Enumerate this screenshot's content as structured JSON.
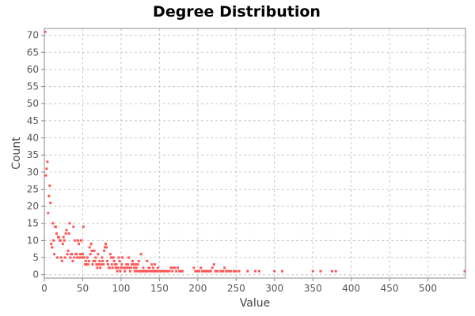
{
  "chart_data": {
    "type": "scatter",
    "title": "Degree Distribution",
    "xlabel": "Value",
    "ylabel": "Count",
    "xlim": [
      0,
      549
    ],
    "ylim": [
      -1,
      72
    ],
    "x_ticks": [
      0,
      50,
      100,
      150,
      200,
      250,
      300,
      350,
      400,
      450,
      500
    ],
    "y_ticks": [
      0,
      5,
      10,
      15,
      20,
      25,
      30,
      35,
      40,
      45,
      50,
      55,
      60,
      65,
      70
    ],
    "grid": true,
    "legend": "none",
    "colors": {
      "point": "#ff5555",
      "grid": "#c8c8c8",
      "frame": "#888888"
    },
    "series": [
      {
        "points": [
          [
            1,
            71
          ],
          [
            2,
            29
          ],
          [
            3,
            31
          ],
          [
            4,
            33
          ],
          [
            5,
            18
          ],
          [
            6,
            23
          ],
          [
            7,
            26
          ],
          [
            8,
            21
          ],
          [
            9,
            9
          ],
          [
            10,
            8
          ],
          [
            11,
            15
          ],
          [
            12,
            10
          ],
          [
            13,
            6
          ],
          [
            14,
            14
          ],
          [
            15,
            14
          ],
          [
            16,
            12
          ],
          [
            17,
            5
          ],
          [
            18,
            11
          ],
          [
            19,
            11
          ],
          [
            20,
            10
          ],
          [
            21,
            10
          ],
          [
            22,
            5
          ],
          [
            23,
            4
          ],
          [
            24,
            9
          ],
          [
            25,
            11
          ],
          [
            26,
            10
          ],
          [
            27,
            5
          ],
          [
            28,
            12
          ],
          [
            29,
            13
          ],
          [
            30,
            6
          ],
          [
            31,
            7
          ],
          [
            32,
            12
          ],
          [
            33,
            15
          ],
          [
            34,
            5
          ],
          [
            35,
            6
          ],
          [
            36,
            6
          ],
          [
            37,
            4
          ],
          [
            38,
            14
          ],
          [
            39,
            5
          ],
          [
            40,
            10
          ],
          [
            41,
            6
          ],
          [
            42,
            6
          ],
          [
            43,
            5
          ],
          [
            44,
            10
          ],
          [
            45,
            9
          ],
          [
            46,
            5
          ],
          [
            47,
            6
          ],
          [
            48,
            10
          ],
          [
            49,
            5
          ],
          [
            50,
            6
          ],
          [
            51,
            14
          ],
          [
            52,
            5
          ],
          [
            53,
            3
          ],
          [
            54,
            4
          ],
          [
            55,
            3
          ],
          [
            56,
            5
          ],
          [
            57,
            3
          ],
          [
            58,
            4
          ],
          [
            59,
            8
          ],
          [
            60,
            6
          ],
          [
            61,
            9
          ],
          [
            62,
            7
          ],
          [
            63,
            3
          ],
          [
            64,
            4
          ],
          [
            65,
            7
          ],
          [
            66,
            4
          ],
          [
            67,
            5
          ],
          [
            68,
            3
          ],
          [
            69,
            2
          ],
          [
            70,
            6
          ],
          [
            71,
            3
          ],
          [
            72,
            4
          ],
          [
            73,
            2
          ],
          [
            74,
            3
          ],
          [
            75,
            5
          ],
          [
            76,
            4
          ],
          [
            77,
            3
          ],
          [
            78,
            7
          ],
          [
            79,
            8
          ],
          [
            80,
            9
          ],
          [
            81,
            8
          ],
          [
            82,
            4
          ],
          [
            83,
            3
          ],
          [
            84,
            2
          ],
          [
            85,
            2
          ],
          [
            86,
            6
          ],
          [
            87,
            5
          ],
          [
            88,
            3
          ],
          [
            89,
            2
          ],
          [
            90,
            5
          ],
          [
            91,
            4
          ],
          [
            92,
            3
          ],
          [
            93,
            2
          ],
          [
            94,
            3
          ],
          [
            95,
            1
          ],
          [
            96,
            2
          ],
          [
            97,
            5
          ],
          [
            98,
            4
          ],
          [
            99,
            1
          ],
          [
            100,
            2
          ],
          [
            101,
            3
          ],
          [
            102,
            5
          ],
          [
            103,
            2
          ],
          [
            104,
            2
          ],
          [
            105,
            1
          ],
          [
            106,
            2
          ],
          [
            107,
            3
          ],
          [
            108,
            2
          ],
          [
            109,
            3
          ],
          [
            110,
            5
          ],
          [
            111,
            2
          ],
          [
            112,
            1
          ],
          [
            113,
            2
          ],
          [
            114,
            3
          ],
          [
            115,
            4
          ],
          [
            116,
            3
          ],
          [
            117,
            2
          ],
          [
            118,
            1
          ],
          [
            119,
            3
          ],
          [
            120,
            2
          ],
          [
            121,
            1
          ],
          [
            122,
            3
          ],
          [
            123,
            4
          ],
          [
            124,
            1
          ],
          [
            125,
            1
          ],
          [
            126,
            6
          ],
          [
            127,
            1
          ],
          [
            128,
            1
          ],
          [
            129,
            2
          ],
          [
            130,
            1
          ],
          [
            131,
            1
          ],
          [
            132,
            1
          ],
          [
            133,
            1
          ],
          [
            134,
            4
          ],
          [
            135,
            1
          ],
          [
            136,
            2
          ],
          [
            137,
            2
          ],
          [
            138,
            1
          ],
          [
            139,
            1
          ],
          [
            140,
            3
          ],
          [
            141,
            1
          ],
          [
            142,
            2
          ],
          [
            143,
            1
          ],
          [
            144,
            3
          ],
          [
            145,
            1
          ],
          [
            146,
            1
          ],
          [
            147,
            1
          ],
          [
            148,
            2
          ],
          [
            150,
            1
          ],
          [
            152,
            1
          ],
          [
            155,
            1
          ],
          [
            157,
            1
          ],
          [
            159,
            1
          ],
          [
            161,
            1
          ],
          [
            163,
            1
          ],
          [
            165,
            2
          ],
          [
            167,
            1
          ],
          [
            168,
            2
          ],
          [
            170,
            2
          ],
          [
            172,
            1
          ],
          [
            174,
            2
          ],
          [
            176,
            1
          ],
          [
            178,
            1
          ],
          [
            180,
            1
          ],
          [
            195,
            2
          ],
          [
            197,
            1
          ],
          [
            200,
            1
          ],
          [
            202,
            1
          ],
          [
            204,
            2
          ],
          [
            206,
            1
          ],
          [
            208,
            1
          ],
          [
            210,
            1
          ],
          [
            212,
            1
          ],
          [
            215,
            1
          ],
          [
            217,
            1
          ],
          [
            219,
            2
          ],
          [
            221,
            3
          ],
          [
            223,
            1
          ],
          [
            226,
            1
          ],
          [
            230,
            1
          ],
          [
            233,
            1
          ],
          [
            235,
            2
          ],
          [
            237,
            1
          ],
          [
            240,
            1
          ],
          [
            243,
            1
          ],
          [
            247,
            1
          ],
          [
            250,
            1
          ],
          [
            254,
            1
          ],
          [
            265,
            1
          ],
          [
            275,
            1
          ],
          [
            280,
            1
          ],
          [
            300,
            1
          ],
          [
            310,
            1
          ],
          [
            350,
            1
          ],
          [
            360,
            1
          ],
          [
            375,
            1
          ],
          [
            380,
            1
          ],
          [
            548,
            1
          ]
        ]
      }
    ]
  }
}
